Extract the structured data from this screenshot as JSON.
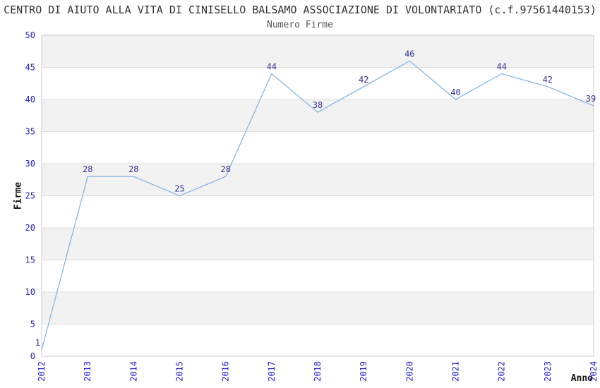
{
  "chart": {
    "title": "CENTRO DI AIUTO ALLA VITA DI CINISELLO BALSAMO ASSOCIAZIONE DI VOLONTARIATO (c.f.97561440153)",
    "subtitle": "Numero Firme",
    "xlabel": "Anno",
    "ylabel": "Firme"
  },
  "chart_data": {
    "type": "line",
    "title": "CENTRO DI AIUTO ALLA VITA DI CINISELLO BALSAMO ASSOCIAZIONE DI VOLONTARIATO (c.f.97561440153)",
    "subtitle": "Numero Firme",
    "xlabel": "Anno",
    "ylabel": "Firme",
    "categories": [
      "2012",
      "2013",
      "2014",
      "2015",
      "2016",
      "2017",
      "2018",
      "2019",
      "2020",
      "2021",
      "2022",
      "2023",
      "2024"
    ],
    "values": [
      1,
      28,
      28,
      25,
      28,
      44,
      38,
      42,
      46,
      40,
      44,
      42,
      39
    ],
    "ylim": [
      0,
      50
    ],
    "ytick_step": 5,
    "yticks": [
      0,
      5,
      10,
      15,
      20,
      25,
      30,
      35,
      40,
      45,
      50
    ],
    "grid": "horizontal, alternating shaded bands every 5 units",
    "legend_position": "none",
    "data_labels_shown": true,
    "colors": {
      "line": "#7cb2e9",
      "band_shade": "#f2f2f2",
      "gridline": "#dddddd",
      "plot_border": "#cccccc",
      "tick_label": "#2222cc",
      "data_label": "#333399",
      "title": "#333333",
      "subtitle": "#555555",
      "axis_title": "#111111",
      "background": "#ffffff"
    }
  }
}
